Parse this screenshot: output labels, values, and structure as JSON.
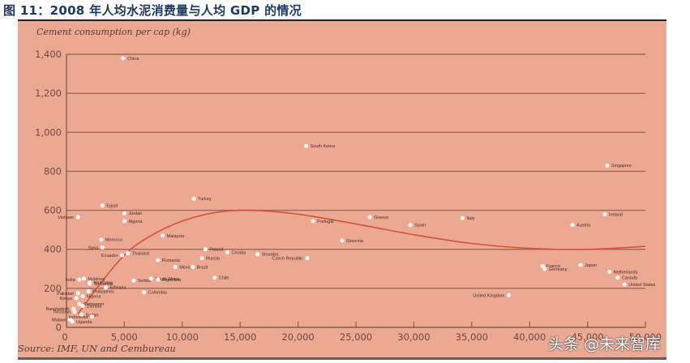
{
  "header": {
    "figure_title": "图 11：2008 年人均水泥消费量与人均 GDP 的情况"
  },
  "source_note": "Source: IMF, UN and Cembureau",
  "watermark": "头条 @未来智库",
  "colors": {
    "panel_bg": "#EBA892",
    "gridline": "#9C6A5A",
    "axis": "#8a5a4c",
    "trend": "#D9503A",
    "point": "#FFF5F0",
    "title": "#1f3864"
  },
  "chart_data": {
    "type": "scatter",
    "title": "2008 年人均水泥消费量与人均 GDP 的情况",
    "xlabel": "",
    "ylabel": "Cement consumption per cap (kg)",
    "xlim": [
      0,
      50000
    ],
    "ylim": [
      0,
      1400
    ],
    "x_ticks": [
      "0",
      "5,000",
      "10,000",
      "15,000",
      "20,000",
      "25,000",
      "30,000",
      "35,000",
      "40,000",
      "45,000",
      "50,000"
    ],
    "y_ticks": [
      "0",
      "200",
      "400",
      "600",
      "800",
      "1,000",
      "1,200",
      "1,400"
    ],
    "grid": "horizontal",
    "points": [
      {
        "label": "China",
        "x": 4900,
        "y": 1380
      },
      {
        "label": "South Korea",
        "x": 20700,
        "y": 930
      },
      {
        "label": "Singapore",
        "x": 46700,
        "y": 830
      },
      {
        "label": "Turkey",
        "x": 11000,
        "y": 660
      },
      {
        "label": "Egypt",
        "x": 3100,
        "y": 625
      },
      {
        "label": "Jordan",
        "x": 5000,
        "y": 585
      },
      {
        "label": "Vietnam",
        "x": 1000,
        "y": 565
      },
      {
        "label": "Algeria",
        "x": 5000,
        "y": 545
      },
      {
        "label": "Malaysia",
        "x": 8300,
        "y": 470
      },
      {
        "label": "Ireland",
        "x": 46500,
        "y": 580
      },
      {
        "label": "Greece",
        "x": 26200,
        "y": 565
      },
      {
        "label": "Italy",
        "x": 34200,
        "y": 560
      },
      {
        "label": "Portugal",
        "x": 21300,
        "y": 545
      },
      {
        "label": "Spain",
        "x": 29700,
        "y": 525
      },
      {
        "label": "Austria",
        "x": 43700,
        "y": 525
      },
      {
        "label": "Slovenia",
        "x": 23800,
        "y": 445
      },
      {
        "label": "Morocco",
        "x": 3000,
        "y": 450
      },
      {
        "label": "Syria",
        "x": 3100,
        "y": 410
      },
      {
        "label": "Ecuador",
        "x": 4800,
        "y": 370
      },
      {
        "label": "Thailand",
        "x": 5300,
        "y": 380
      },
      {
        "label": "Romania",
        "x": 7900,
        "y": 345
      },
      {
        "label": "Poland",
        "x": 12000,
        "y": 400
      },
      {
        "label": "Slovakia",
        "x": 16500,
        "y": 375
      },
      {
        "label": "Croatia",
        "x": 13900,
        "y": 385
      },
      {
        "label": "Russia",
        "x": 11700,
        "y": 355
      },
      {
        "label": "Mexico",
        "x": 9400,
        "y": 310
      },
      {
        "label": "Brazil",
        "x": 10900,
        "y": 310
      },
      {
        "label": "Czech Republic",
        "x": 20800,
        "y": 355
      },
      {
        "label": "Chile",
        "x": 12800,
        "y": 255
      },
      {
        "label": "Moldova",
        "x": 1500,
        "y": 250
      },
      {
        "label": "India",
        "x": 1100,
        "y": 245
      },
      {
        "label": "Honduras",
        "x": 2000,
        "y": 230
      },
      {
        "label": "Sri Lanka",
        "x": 2000,
        "y": 225
      },
      {
        "label": "Serbia",
        "x": 5800,
        "y": 240
      },
      {
        "label": "South Africa",
        "x": 7300,
        "y": 250
      },
      {
        "label": "Argentina",
        "x": 7900,
        "y": 245
      },
      {
        "label": "Colombia",
        "x": 6700,
        "y": 180
      },
      {
        "label": "Ethiopia",
        "x": 3400,
        "y": 205
      },
      {
        "label": "Philippines",
        "x": 1900,
        "y": 185
      },
      {
        "label": "Pakistan",
        "x": 1000,
        "y": 175
      },
      {
        "label": "Nigeria",
        "x": 1400,
        "y": 160
      },
      {
        "label": "Kenya",
        "x": 850,
        "y": 150
      },
      {
        "label": "Cameroon",
        "x": 1100,
        "y": 120
      },
      {
        "label": "Zambia",
        "x": 1400,
        "y": 110
      },
      {
        "label": "Bangladesh",
        "x": 600,
        "y": 95
      },
      {
        "label": "Tanzania",
        "x": 700,
        "y": 80
      },
      {
        "label": "Sudan",
        "x": 1300,
        "y": 65
      },
      {
        "label": "Malawi",
        "x": 300,
        "y": 40
      },
      {
        "label": "Uganda",
        "x": 500,
        "y": 30
      },
      {
        "label": "Indonesia",
        "x": 2200,
        "y": 55
      },
      {
        "label": "France",
        "x": 41100,
        "y": 315
      },
      {
        "label": "Germany",
        "x": 41300,
        "y": 300
      },
      {
        "label": "Japan",
        "x": 44400,
        "y": 320
      },
      {
        "label": "Netherlands",
        "x": 46900,
        "y": 285
      },
      {
        "label": "Canada",
        "x": 47600,
        "y": 255
      },
      {
        "label": "United States",
        "x": 48200,
        "y": 220
      },
      {
        "label": "United Kingdom",
        "x": 38200,
        "y": 165
      }
    ],
    "trend_curve": [
      {
        "x": 1000,
        "y": 70
      },
      {
        "x": 3000,
        "y": 230
      },
      {
        "x": 5000,
        "y": 370
      },
      {
        "x": 7000,
        "y": 460
      },
      {
        "x": 10000,
        "y": 545
      },
      {
        "x": 13000,
        "y": 590
      },
      {
        "x": 16000,
        "y": 600
      },
      {
        "x": 20000,
        "y": 580
      },
      {
        "x": 25000,
        "y": 530
      },
      {
        "x": 30000,
        "y": 475
      },
      {
        "x": 35000,
        "y": 430
      },
      {
        "x": 40000,
        "y": 405
      },
      {
        "x": 45000,
        "y": 400
      },
      {
        "x": 50000,
        "y": 415
      }
    ]
  }
}
